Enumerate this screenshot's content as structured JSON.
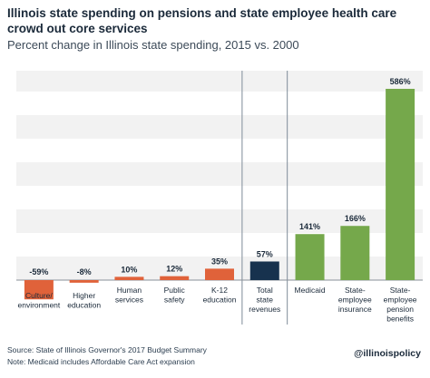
{
  "header": {
    "title": "Illinois state spending on pensions and state employee health care crowd out core services",
    "subtitle": "Percent change in Illinois state spending, 2015 vs. 2000"
  },
  "footer": {
    "source": "Source: State of Illinois Governor's 2017 Budget Summary",
    "note": "Note: Medicaid includes Affordable Care Act expansion",
    "handle": "@illinoispolicy"
  },
  "colors": {
    "negative_bar": "#e0623a",
    "total_bar": "#17324e",
    "health_pension_bar": "#75a84b",
    "grid_band": "#f2f2f2"
  },
  "chart_data": {
    "type": "bar",
    "title": "Illinois state spending on pensions and state employee health care crowd out core services",
    "subtitle": "Percent change in Illinois state spending, 2015 vs. 2000",
    "xlabel": "",
    "ylabel": "",
    "unit": "%",
    "ylim": [
      -65,
      650
    ],
    "grid": true,
    "categories": [
      [
        "Culture/",
        "environment"
      ],
      [
        "Higher",
        "education"
      ],
      [
        "Human",
        "services"
      ],
      [
        "Public",
        "safety"
      ],
      [
        "K-12",
        "education"
      ],
      [
        "Total",
        "state",
        "revenues"
      ],
      [
        "Medicaid"
      ],
      [
        "State-",
        "employee",
        "insurance"
      ],
      [
        "State-",
        "employee",
        "pension",
        "benefits"
      ]
    ],
    "values": [
      -59,
      -8,
      10,
      12,
      35,
      57,
      141,
      166,
      586
    ],
    "value_labels": [
      "-59%",
      "-8%",
      "10%",
      "12%",
      "35%",
      "57%",
      "141%",
      "166%",
      "586%"
    ],
    "groups": [
      "core",
      "core",
      "core",
      "core",
      "core",
      "total",
      "health_pension",
      "health_pension",
      "health_pension"
    ]
  }
}
